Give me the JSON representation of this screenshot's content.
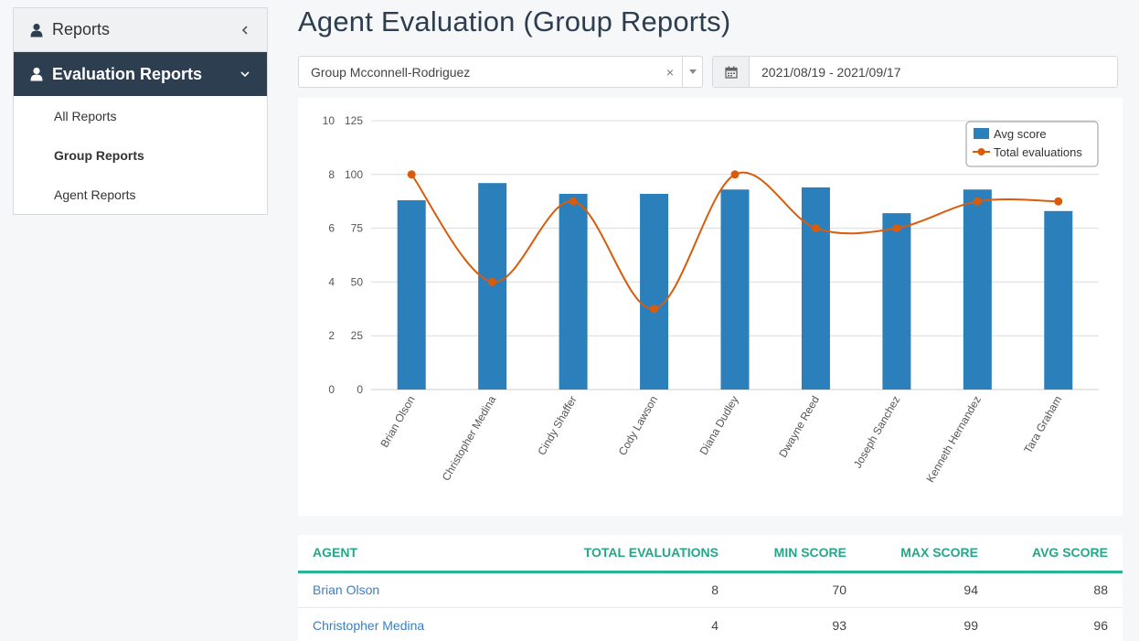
{
  "sidebar": {
    "header": "Reports",
    "section": "Evaluation Reports",
    "items": [
      {
        "label": "All Reports",
        "active": false
      },
      {
        "label": "Group Reports",
        "active": true
      },
      {
        "label": "Agent Reports",
        "active": false
      }
    ]
  },
  "page": {
    "title": "Agent Evaluation (Group Reports)"
  },
  "filters": {
    "group": "Group Mcconnell-Rodriguez",
    "clear_icon": "×",
    "date_range": "2021/08/19 - 2021/09/17"
  },
  "colors": {
    "bar": "#2b7fba",
    "line": "#d85c0c",
    "accent": "#26a689",
    "nav": "#2c3e50",
    "link": "#3a7fc1"
  },
  "chart_data": {
    "type": "bar",
    "categories": [
      "Brian Olson",
      "Christopher Medina",
      "Cindy Shaffer",
      "Cody Lawson",
      "Diana Dudley",
      "Dwayne Reed",
      "Joseph Sanchez",
      "Kenneth Hernandez",
      "Tara Graham"
    ],
    "series": [
      {
        "name": "Avg score",
        "type": "bar",
        "axis": "right",
        "values": [
          88,
          96,
          91,
          91,
          93,
          94,
          82,
          93,
          83
        ]
      },
      {
        "name": "Total evaluations",
        "type": "line",
        "axis": "left",
        "values": [
          8,
          4,
          7,
          3,
          8,
          6,
          6,
          7,
          7
        ]
      }
    ],
    "left_axis": {
      "ticks": [
        0,
        2,
        4,
        6,
        8,
        10
      ],
      "range": [
        0,
        10
      ]
    },
    "right_axis": {
      "ticks": [
        0,
        25,
        50,
        75,
        100,
        125
      ],
      "range": [
        0,
        125
      ]
    },
    "grid": true,
    "legend_position": "top-right"
  },
  "table": {
    "columns": [
      "AGENT",
      "TOTAL EVALUATIONS",
      "MIN SCORE",
      "MAX SCORE",
      "AVG SCORE"
    ],
    "rows": [
      {
        "agent": "Brian Olson",
        "total": "8",
        "min": "70",
        "max": "94",
        "avg": "88"
      },
      {
        "agent": "Christopher Medina",
        "total": "4",
        "min": "93",
        "max": "99",
        "avg": "96"
      }
    ]
  }
}
